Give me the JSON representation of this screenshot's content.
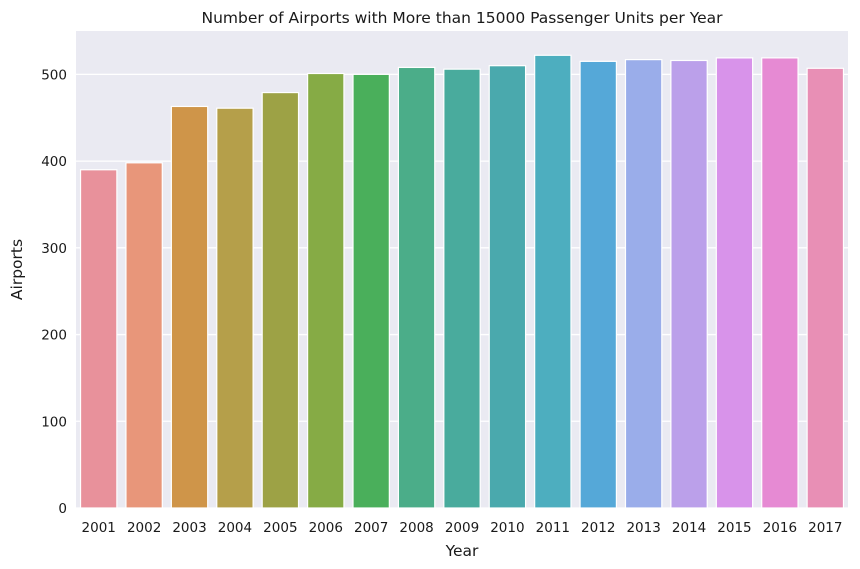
{
  "chart_data": {
    "type": "bar",
    "title": "Number of Airports with More than 15000 Passenger Units per Year",
    "xlabel": "Year",
    "ylabel": "Airports",
    "categories": [
      "2001",
      "2002",
      "2003",
      "2004",
      "2005",
      "2006",
      "2007",
      "2008",
      "2009",
      "2010",
      "2011",
      "2012",
      "2013",
      "2014",
      "2015",
      "2016",
      "2017"
    ],
    "values": [
      390,
      398,
      463,
      461,
      479,
      501,
      500,
      508,
      506,
      510,
      522,
      515,
      517,
      516,
      519,
      519,
      507
    ],
    "ylim": [
      0,
      550
    ],
    "yticks": [
      0,
      100,
      200,
      300,
      400,
      500
    ],
    "grid": true,
    "colors": [
      "#e8919b",
      "#e8967a",
      "#cf9549",
      "#b59f4a",
      "#9da245",
      "#86ab45",
      "#4aaf5b",
      "#4bad89",
      "#49ab9d",
      "#4aa9ad",
      "#4daebf",
      "#55a8d8",
      "#9aadea",
      "#bba0ea",
      "#d893ea",
      "#e68ad3",
      "#e88fb5"
    ],
    "background": "#eaeaf2"
  }
}
